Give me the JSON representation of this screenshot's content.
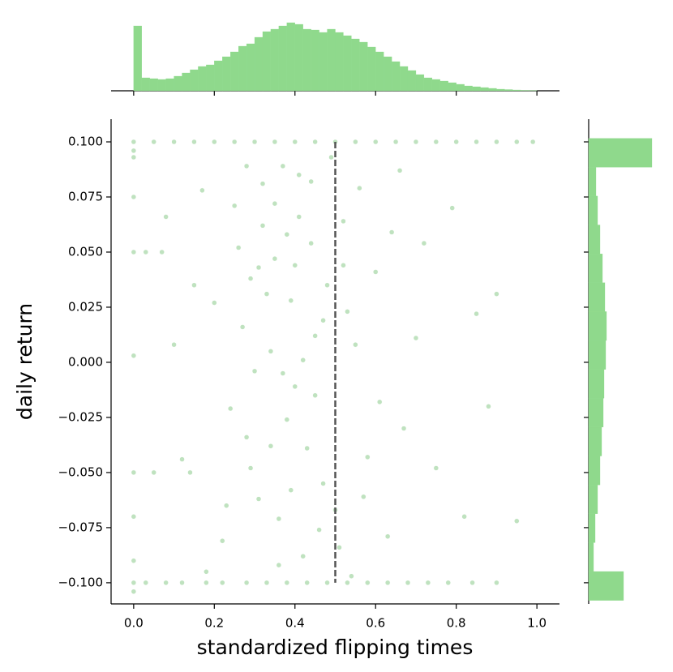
{
  "chart_data": [
    {
      "type": "scatter",
      "xlabel": "standardized flipping times",
      "ylabel": "daily return",
      "color": "#2ca02c",
      "xlim": [
        -0.056,
        1.056
      ],
      "ylim": [
        -0.1096,
        0.1103
      ],
      "xticks": [
        {
          "value": 0,
          "label": "0.0"
        },
        0.2,
        0.4,
        0.6,
        0.8,
        {
          "value": 1,
          "label": "1.0"
        }
      ],
      "yticks": [
        {
          "value": -0.1,
          "label": "−0.100"
        },
        {
          "value": -0.075,
          "label": "−0.075"
        },
        {
          "value": -0.05,
          "label": "−0.050"
        },
        {
          "value": -0.025,
          "label": "−0.025"
        },
        {
          "value": 0,
          "label": "0.000"
        },
        {
          "value": 0.025,
          "label": "0.025"
        },
        {
          "value": 0.05,
          "label": "0.050"
        },
        {
          "value": 0.075,
          "label": "0.075"
        },
        {
          "value": 0.1,
          "label": "0.100"
        }
      ],
      "vline": 0.5,
      "vline_color": "#555555",
      "x": [
        0.0,
        0.05,
        0.1,
        0.15,
        0.2,
        0.25,
        0.3,
        0.35,
        0.4,
        0.45,
        0.5,
        0.55,
        0.6,
        0.65,
        0.7,
        0.75,
        0.8,
        0.85,
        0.9,
        0.95,
        0.99,
        0.0,
        0.03,
        0.08,
        0.12,
        0.18,
        0.22,
        0.28,
        0.33,
        0.38,
        0.43,
        0.48,
        0.53,
        0.58,
        0.63,
        0.68,
        0.73,
        0.78,
        0.84,
        0.9,
        0,
        0,
        0,
        0,
        0,
        0,
        0,
        0,
        0,
        0.32,
        0.41,
        0.28,
        0.45,
        0.36,
        0.52,
        0.39,
        0.25,
        0.61,
        0.47,
        0.34,
        0.42,
        0.29,
        0.56,
        0.38,
        0.44,
        0.31,
        0.49,
        0.27,
        0.58,
        0.35,
        0.4,
        0.22,
        0.53,
        0.37,
        0.46,
        0.3,
        0.64,
        0.33,
        0.43,
        0.26,
        0.5,
        0.41,
        0.36,
        0.55,
        0.24,
        0.48,
        0.39,
        0.67,
        0.32,
        0.45,
        0.29,
        0.6,
        0.42,
        0.35,
        0.51,
        0.2,
        0.38,
        0.47,
        0.7,
        0.34,
        0.44,
        0.57,
        0.31,
        0.4,
        0.23,
        0.63,
        0.37,
        0.52,
        0.28,
        0.75,
        0.15,
        0.12,
        0.08,
        0.85,
        0.9,
        0.18,
        0.79,
        0.66,
        0.1,
        0.82,
        0.72,
        0.17,
        0.54,
        0.95,
        0.88,
        0.05,
        0.07,
        0.03,
        0.14
      ],
      "values": [
        0.1,
        0.1,
        0.1,
        0.1,
        0.1,
        0.1,
        0.1,
        0.1,
        0.1,
        0.1,
        0.1,
        0.1,
        0.1,
        0.1,
        0.1,
        0.1,
        0.1,
        0.1,
        0.1,
        0.1,
        0.1,
        -0.1,
        -0.1,
        -0.1,
        -0.1,
        -0.1,
        -0.1,
        -0.1,
        -0.1,
        -0.1,
        -0.1,
        -0.1,
        -0.1,
        -0.1,
        -0.1,
        -0.1,
        -0.1,
        -0.1,
        -0.1,
        -0.1,
        0.096,
        0.093,
        0.075,
        0.05,
        0.003,
        -0.05,
        -0.07,
        -0.09,
        -0.104,
        0.062,
        0.085,
        -0.034,
        0.012,
        -0.071,
        0.044,
        0.028,
        0.071,
        -0.018,
        -0.055,
        0.005,
        -0.088,
        0.038,
        0.079,
        -0.026,
        0.054,
        -0.062,
        0.093,
        0.016,
        -0.043,
        0.047,
        -0.011,
        -0.081,
        0.023,
        0.089,
        -0.076,
        -0.004,
        0.059,
        0.031,
        -0.039,
        0.052,
        -0.067,
        0.066,
        -0.092,
        0.008,
        -0.021,
        0.035,
        -0.058,
        -0.03,
        0.081,
        -0.015,
        -0.048,
        0.041,
        0.001,
        0.072,
        -0.084,
        0.027,
        0.058,
        0.019,
        0.011,
        -0.038,
        0.082,
        -0.061,
        0.043,
        0.044,
        -0.065,
        -0.079,
        -0.005,
        0.064,
        0.089,
        -0.048,
        0.035,
        -0.044,
        0.066,
        0.022,
        0.031,
        -0.095,
        0.07,
        0.087,
        0.008,
        -0.07,
        0.054,
        0.078,
        -0.097,
        -0.072,
        -0.02,
        -0.05,
        0.05,
        0.05,
        -0.05
      ]
    },
    {
      "type": "histogram",
      "orientation": "vertical",
      "color": "#8fd98c",
      "ylim": [
        0,
        88
      ],
      "bins": [
        0,
        0.02,
        0.04,
        0.06,
        0.08,
        0.1,
        0.12,
        0.14,
        0.16,
        0.18,
        0.2,
        0.22,
        0.24,
        0.26,
        0.28,
        0.3,
        0.32,
        0.34,
        0.36,
        0.38,
        0.4,
        0.42,
        0.44,
        0.46,
        0.48,
        0.5,
        0.52,
        0.54,
        0.56,
        0.58,
        0.6,
        0.62,
        0.64,
        0.66,
        0.68,
        0.7,
        0.72,
        0.74,
        0.76,
        0.78,
        0.8,
        0.82,
        0.84,
        0.86,
        0.88,
        0.9,
        0.92,
        0.94,
        0.96,
        0.98,
        1.0
      ],
      "values": [
        80,
        16,
        15,
        14,
        15,
        18,
        22,
        26,
        30,
        32,
        37,
        42,
        48,
        55,
        58,
        66,
        73,
        76,
        80,
        84,
        82,
        76,
        75,
        72,
        76,
        72,
        68,
        64,
        60,
        54,
        48,
        42,
        36,
        30,
        25,
        20,
        16,
        14,
        12,
        10,
        8,
        6,
        5,
        4,
        3,
        2,
        1.5,
        1,
        0.5,
        0.3
      ]
    },
    {
      "type": "histogram",
      "orientation": "horizontal",
      "color": "#8fd98c",
      "xlim": [
        0,
        80
      ],
      "bins": [
        -0.108,
        -0.0949,
        -0.0818,
        -0.0687,
        -0.0556,
        -0.0425,
        -0.0294,
        -0.0163,
        -0.0032,
        0.0099,
        0.023,
        0.0361,
        0.0492,
        0.0623,
        0.0754,
        0.0885,
        0.1016
      ],
      "values": [
        43,
        6,
        8,
        11,
        14,
        16,
        18,
        19,
        21,
        22,
        20,
        17,
        14,
        11,
        9,
        78
      ]
    }
  ]
}
